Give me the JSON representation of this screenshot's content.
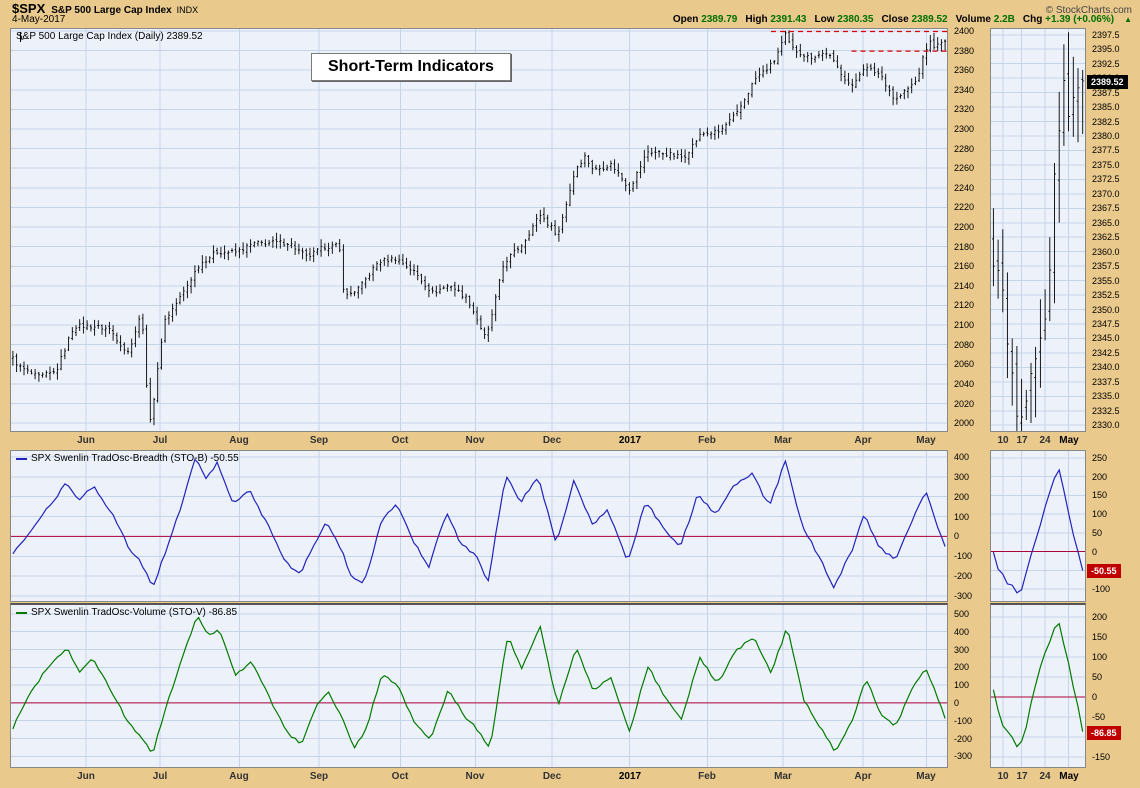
{
  "colors": {
    "background_tan": "#e9c98c",
    "plot_bg": "#edf2fa",
    "grid": "#c6d4ea",
    "bars": "#000000",
    "stob_line": "#2222bb",
    "stov_line": "#007a00",
    "zero_line": "#b0003a",
    "dashed": "#dd0000",
    "last_box_black": "#000000",
    "last_box_red": "#c00000"
  },
  "header": {
    "symbol": "$SPX",
    "name": "S&P 500 Large Cap Index",
    "exchange": "INDX",
    "date": "4-May-2017",
    "copyright": "© StockCharts.com",
    "quote": {
      "items": [
        {
          "label": "Open",
          "value": "2389.79"
        },
        {
          "label": "High",
          "value": "2391.43"
        },
        {
          "label": "Low",
          "value": "2380.35"
        },
        {
          "label": "Close",
          "value": "2389.52"
        },
        {
          "label": "Volume",
          "value": "2.2B"
        },
        {
          "label": "Chg",
          "value": "+1.39 (+0.06%)"
        }
      ],
      "arrow": "▲"
    }
  },
  "annotation": {
    "title": "Short-Term Indicators"
  },
  "panels": {
    "price": {
      "legend": "S&P 500 Large Cap Index (Daily) 2389.52"
    },
    "stob": {
      "legend": "SPX Swenlin TradOsc-Breadth (STO-B) -50.55"
    },
    "stov": {
      "legend": "SPX Swenlin TradOsc-Volume (STO-V) -86.85"
    }
  },
  "chart_data": [
    {
      "type": "ohlc",
      "title": "S&P 500 Large Cap Index (Daily)",
      "last_close": 2389.52,
      "last_bar": {
        "open": 2389.79,
        "high": 2391.43,
        "low": 2380.35,
        "close": 2389.52
      },
      "ylim": [
        1992,
        2402
      ],
      "yticks": [
        "2400",
        "2380",
        "2360",
        "2340",
        "2320",
        "2300",
        "2280",
        "2260",
        "2240",
        "2220",
        "2200",
        "2180",
        "2160",
        "2140",
        "2120",
        "2100",
        "2080",
        "2060",
        "2040",
        "2020",
        "2000"
      ],
      "months": [
        {
          "label": "Jun",
          "f": 0.08
        },
        {
          "label": "Jul",
          "f": 0.159
        },
        {
          "label": "Aug",
          "f": 0.244
        },
        {
          "label": "Sep",
          "f": 0.329
        },
        {
          "label": "Oct",
          "f": 0.416
        },
        {
          "label": "Nov",
          "f": 0.496
        },
        {
          "label": "Dec",
          "f": 0.578
        },
        {
          "label": "2017",
          "f": 0.661,
          "bold": true
        },
        {
          "label": "Feb",
          "f": 0.744
        },
        {
          "label": "Mar",
          "f": 0.825
        },
        {
          "label": "Apr",
          "f": 0.91
        },
        {
          "label": "May",
          "f": 0.978
        }
      ],
      "resistance": [
        {
          "y": 2399.5,
          "f0": 0.812
        },
        {
          "y": 2379.5,
          "f0": 0.898
        }
      ],
      "anchors": [
        [
          0,
          2066
        ],
        [
          0.4,
          2057
        ],
        [
          1.4,
          2047
        ],
        [
          2.4,
          2052
        ],
        [
          3.4,
          2099
        ],
        [
          4.4,
          2099
        ],
        [
          5.4,
          2096
        ],
        [
          6.4,
          2071
        ],
        [
          7.2,
          2113
        ],
        [
          7.45,
          2037
        ],
        [
          7.7,
          2001
        ],
        [
          7.95,
          2036
        ],
        [
          8.2,
          2070
        ],
        [
          8.4,
          2103
        ],
        [
          9.4,
          2130
        ],
        [
          10.4,
          2162
        ],
        [
          11.4,
          2175
        ],
        [
          12.4,
          2174
        ],
        [
          13.4,
          2183
        ],
        [
          14.4,
          2184
        ],
        [
          15.4,
          2184
        ],
        [
          16.4,
          2169
        ],
        [
          17.4,
          2180
        ],
        [
          18.2,
          2181
        ],
        [
          18.5,
          2128
        ],
        [
          19.4,
          2139
        ],
        [
          20.4,
          2165
        ],
        [
          21.4,
          2168
        ],
        [
          22.4,
          2154
        ],
        [
          23.4,
          2133
        ],
        [
          24.4,
          2141
        ],
        [
          25.4,
          2126
        ],
        [
          26.4,
          2085
        ],
        [
          27.4,
          2164
        ],
        [
          28.4,
          2182
        ],
        [
          29.4,
          2213
        ],
        [
          30.4,
          2192
        ],
        [
          31.4,
          2260
        ],
        [
          31.9,
          2272
        ],
        [
          32.4,
          2258
        ],
        [
          33.4,
          2264
        ],
        [
          34.4,
          2239
        ],
        [
          35.4,
          2277
        ],
        [
          36.4,
          2275
        ],
        [
          37.4,
          2271
        ],
        [
          38.4,
          2295
        ],
        [
          39.4,
          2297
        ],
        [
          40.4,
          2316
        ],
        [
          41.4,
          2351
        ],
        [
          42.4,
          2367
        ],
        [
          43.1,
          2396
        ],
        [
          43.4,
          2383
        ],
        [
          44.4,
          2373
        ],
        [
          45.4,
          2378
        ],
        [
          46.8,
          2342
        ],
        [
          47.4,
          2363
        ],
        [
          48.4,
          2356
        ],
        [
          49.2,
          2329
        ],
        [
          50.4,
          2349
        ],
        [
          50.8,
          2374
        ],
        [
          51.1,
          2389
        ],
        [
          51.5,
          2384
        ],
        [
          52,
          2389.52
        ]
      ],
      "thumb": {
        "ylim": [
          2329,
          2398.5
        ],
        "yticks": [
          "2397.5",
          "2395.0",
          "2392.5",
          "2390.0",
          "2387.5",
          "2385.0",
          "2382.5",
          "2380.0",
          "2377.5",
          "2375.0",
          "2372.5",
          "2370.0",
          "2367.5",
          "2365.0",
          "2362.5",
          "2360.0",
          "2357.5",
          "2355.0",
          "2352.5",
          "2350.0",
          "2347.5",
          "2345.0",
          "2342.5",
          "2340.0",
          "2337.5",
          "2335.0",
          "2332.5",
          "2330.0"
        ],
        "xticks": [
          {
            "label": "10",
            "f": 0.125
          },
          {
            "label": "17",
            "f": 0.325
          },
          {
            "label": "24",
            "f": 0.575
          },
          {
            "label": "May",
            "f": 0.825,
            "bold": true
          }
        ],
        "last_value": 2389.52,
        "last_label": "2389.52"
      }
    },
    {
      "type": "line",
      "name": "SPX Swenlin TradOsc-Breadth (STO-B)",
      "last_value": -50.55,
      "color_key": "stob_line",
      "ylim": [
        -325,
        430
      ],
      "yticks": [
        "400",
        "300",
        "200",
        "100",
        "0",
        "-100",
        "-200",
        "-300"
      ],
      "zero_line": 0,
      "anchors": [
        [
          0,
          -80
        ],
        [
          1,
          20
        ],
        [
          2,
          150
        ],
        [
          3,
          270
        ],
        [
          3.7,
          180
        ],
        [
          4.5,
          255
        ],
        [
          5.5,
          120
        ],
        [
          6.5,
          -60
        ],
        [
          7.2,
          -140
        ],
        [
          7.8,
          -255
        ],
        [
          8.6,
          -60
        ],
        [
          9.5,
          180
        ],
        [
          10.2,
          400
        ],
        [
          10.8,
          290
        ],
        [
          11.4,
          370
        ],
        [
          12.3,
          160
        ],
        [
          13.2,
          230
        ],
        [
          14.2,
          60
        ],
        [
          15.2,
          -130
        ],
        [
          16,
          -190
        ],
        [
          16.8,
          -40
        ],
        [
          17.5,
          80
        ],
        [
          18.3,
          -60
        ],
        [
          18.9,
          -210
        ],
        [
          19.6,
          -235
        ],
        [
          20.6,
          90
        ],
        [
          21.4,
          160
        ],
        [
          22.3,
          -20
        ],
        [
          23.2,
          -150
        ],
        [
          24.2,
          120
        ],
        [
          25,
          -40
        ],
        [
          25.8,
          -90
        ],
        [
          26.5,
          -230
        ],
        [
          27.5,
          310
        ],
        [
          28.3,
          170
        ],
        [
          29.3,
          300
        ],
        [
          30.3,
          -30
        ],
        [
          31.3,
          280
        ],
        [
          32.3,
          60
        ],
        [
          33.2,
          130
        ],
        [
          34.3,
          -130
        ],
        [
          35.3,
          180
        ],
        [
          36.2,
          50
        ],
        [
          37.2,
          -60
        ],
        [
          38.2,
          210
        ],
        [
          39.2,
          110
        ],
        [
          40.2,
          250
        ],
        [
          41.2,
          320
        ],
        [
          42.2,
          150
        ],
        [
          43.1,
          385
        ],
        [
          44,
          60
        ],
        [
          45,
          -110
        ],
        [
          45.8,
          -255
        ],
        [
          46.8,
          -70
        ],
        [
          47.5,
          110
        ],
        [
          48.3,
          -50
        ],
        [
          49.2,
          -120
        ],
        [
          50.1,
          60
        ],
        [
          50.9,
          235
        ],
        [
          51.4,
          90
        ],
        [
          52,
          -50.55
        ]
      ],
      "thumb": {
        "ylim": [
          -132,
          268
        ],
        "yticks": [
          "250",
          "200",
          "150",
          "100",
          "50",
          "0",
          "-50",
          "-100"
        ],
        "last_value": -50.55,
        "last_label": "-50.55"
      }
    },
    {
      "type": "line",
      "name": "SPX Swenlin TradOsc-Volume (STO-V)",
      "last_value": -86.85,
      "color_key": "stov_line",
      "ylim": [
        -360,
        550
      ],
      "yticks": [
        "500",
        "400",
        "300",
        "200",
        "100",
        "0",
        "-100",
        "-200",
        "-300"
      ],
      "zero_line": 0,
      "anchors": [
        [
          0,
          -140
        ],
        [
          1,
          60
        ],
        [
          2,
          210
        ],
        [
          3,
          310
        ],
        [
          3.7,
          170
        ],
        [
          4.5,
          250
        ],
        [
          5.5,
          60
        ],
        [
          6.5,
          -120
        ],
        [
          7.2,
          -200
        ],
        [
          7.8,
          -285
        ],
        [
          8.6,
          0
        ],
        [
          9.5,
          260
        ],
        [
          10.3,
          500
        ],
        [
          10.9,
          380
        ],
        [
          11.5,
          420
        ],
        [
          12.4,
          150
        ],
        [
          13.3,
          240
        ],
        [
          14.3,
          30
        ],
        [
          15.3,
          -170
        ],
        [
          16.1,
          -230
        ],
        [
          16.9,
          -20
        ],
        [
          17.6,
          70
        ],
        [
          18.4,
          -90
        ],
        [
          19,
          -260
        ],
        [
          19.7,
          -150
        ],
        [
          20.6,
          170
        ],
        [
          21.5,
          90
        ],
        [
          22.4,
          -110
        ],
        [
          23.3,
          -200
        ],
        [
          24.3,
          80
        ],
        [
          25.1,
          -60
        ],
        [
          25.9,
          -150
        ],
        [
          26.6,
          -260
        ],
        [
          27.6,
          380
        ],
        [
          28.4,
          190
        ],
        [
          29.4,
          430
        ],
        [
          30.4,
          -20
        ],
        [
          31.4,
          310
        ],
        [
          32.4,
          70
        ],
        [
          33.3,
          150
        ],
        [
          34.4,
          -170
        ],
        [
          35.4,
          210
        ],
        [
          36.3,
          40
        ],
        [
          37.3,
          -90
        ],
        [
          38.3,
          260
        ],
        [
          39.3,
          110
        ],
        [
          40.3,
          290
        ],
        [
          41.3,
          370
        ],
        [
          42.3,
          170
        ],
        [
          43.2,
          430
        ],
        [
          44.1,
          20
        ],
        [
          45.1,
          -150
        ],
        [
          45.9,
          -280
        ],
        [
          46.9,
          -80
        ],
        [
          47.6,
          140
        ],
        [
          48.4,
          -60
        ],
        [
          49.2,
          -140
        ],
        [
          50.1,
          70
        ],
        [
          50.9,
          205
        ],
        [
          51.4,
          80
        ],
        [
          52,
          -86.85
        ]
      ],
      "thumb": {
        "ylim": [
          -175,
          230
        ],
        "yticks": [
          "200",
          "150",
          "100",
          "50",
          "0",
          "-50",
          "-100",
          "-150"
        ],
        "last_value": -86.85,
        "last_label": "-86.85"
      }
    }
  ]
}
